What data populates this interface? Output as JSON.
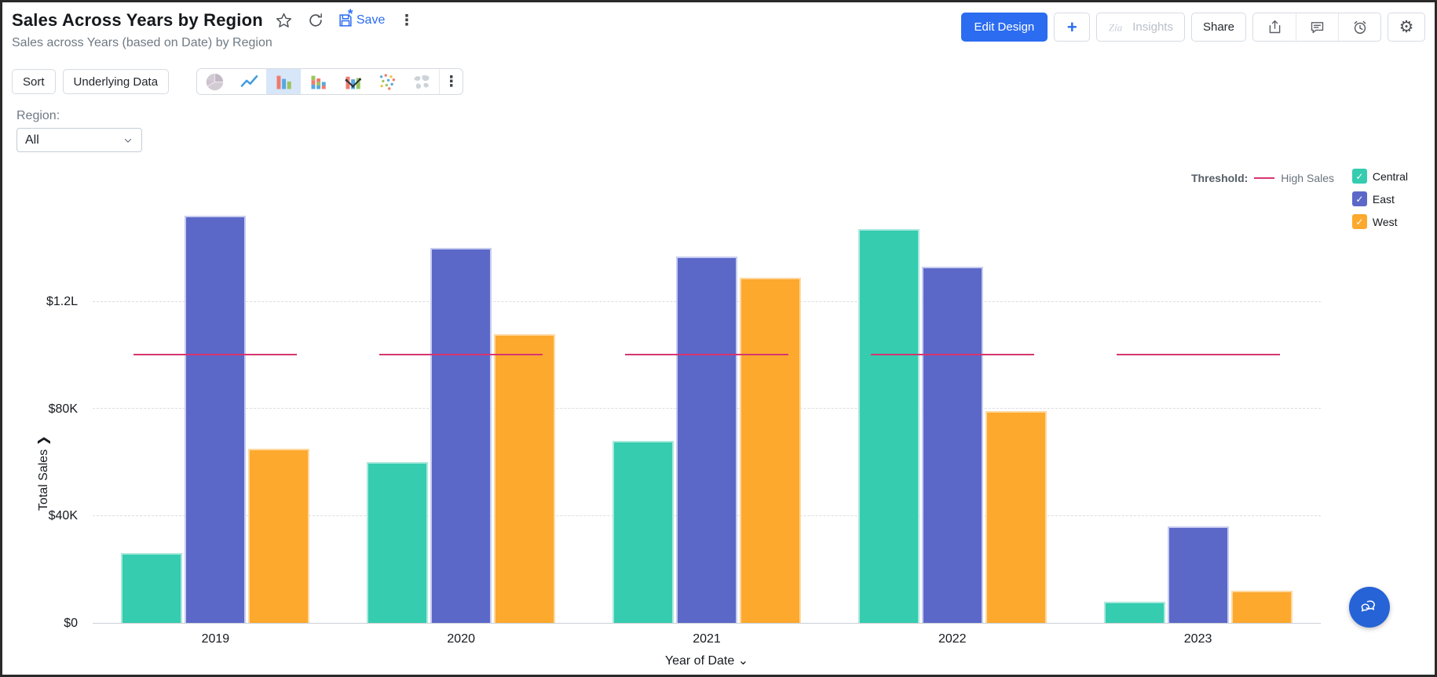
{
  "header": {
    "title": "Sales Across Years by Region",
    "subtitle": "Sales across Years (based on Date) by Region",
    "save_label": "Save",
    "edit_design_label": "Edit Design",
    "add_label": "+",
    "insights_label": "Insights",
    "share_label": "Share",
    "icons": [
      "favorite-star-icon",
      "refresh-icon",
      "save-icon",
      "more-options-icon",
      "export-icon",
      "comments-icon",
      "alerts-clock-icon",
      "settings-gear-icon"
    ]
  },
  "toolbar": {
    "sort_label": "Sort",
    "underlying_data_label": "Underlying Data",
    "chart_types": [
      "pie-chart-icon",
      "line-chart-icon",
      "bar-chart-icon",
      "stacked-bar-chart-icon",
      "bar-line-combo-icon",
      "scatter-chart-icon",
      "world-map-chart-icon"
    ],
    "selected_chart_type": "bar",
    "more_icon": "more-options-icon"
  },
  "filter": {
    "label": "Region:",
    "value": "All"
  },
  "chart_data": {
    "type": "bar",
    "title": "Sales Across Years by Region",
    "categories": [
      "2019",
      "2020",
      "2021",
      "2022",
      "2023"
    ],
    "series": [
      {
        "name": "Central",
        "color": "#35ccb0",
        "border": "#a9e9dc",
        "values": [
          26000,
          60000,
          68000,
          147000,
          8000
        ]
      },
      {
        "name": "East",
        "color": "#5b68c8",
        "border": "#c7ccf0",
        "values": [
          152000,
          140000,
          137000,
          133000,
          36000
        ]
      },
      {
        "name": "West",
        "color": "#fca92e",
        "border": "#fed9a2",
        "values": [
          65000,
          108000,
          129000,
          79000,
          12000
        ]
      }
    ],
    "threshold": {
      "label_prefix": "Threshold:",
      "name": "High Sales",
      "value": 100000,
      "color": "#d63570"
    },
    "xlabel": "Year of Date",
    "ylabel": "Total Sales",
    "yticks": [
      {
        "label": "$0",
        "value": 0
      },
      {
        "label": "$40K",
        "value": 40000
      },
      {
        "label": "$80K",
        "value": 80000
      },
      {
        "label": "$1.2L",
        "value": 120000
      }
    ],
    "ylim": [
      0,
      165000
    ],
    "grid": "horizontal-dashed",
    "legend_position": "top-right",
    "legend_checked": [
      true,
      true,
      true
    ]
  },
  "chat": {
    "icon": "chat-bubbles-icon"
  }
}
